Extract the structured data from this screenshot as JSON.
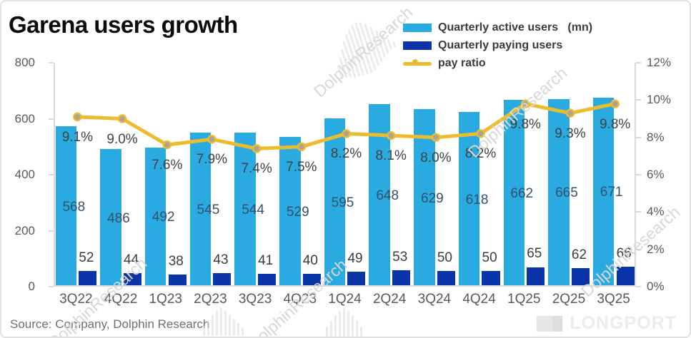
{
  "title": "Garena users growth",
  "legend": [
    {
      "label": "Quarterly active users   (mn)",
      "type": "bar"
    },
    {
      "label": "Quarterly paying users",
      "type": "bar"
    },
    {
      "label": "pay ratio",
      "type": "line"
    }
  ],
  "chart_data": {
    "type": "bar+line combo",
    "categories": [
      "3Q22",
      "4Q22",
      "1Q23",
      "2Q23",
      "3Q23",
      "4Q23",
      "1Q24",
      "2Q24",
      "3Q24",
      "4Q24",
      "1Q25",
      "2Q25",
      "3Q25"
    ],
    "series": [
      {
        "name": "Quarterly active users (mn)",
        "type": "bar",
        "axis": "left",
        "color": "#29abe2",
        "values": [
          568,
          486,
          492,
          545,
          544,
          529,
          595,
          648,
          629,
          618,
          662,
          665,
          671
        ]
      },
      {
        "name": "Quarterly paying users",
        "type": "bar",
        "axis": "left",
        "color": "#0b34a8",
        "values": [
          52,
          44,
          38,
          43,
          41,
          40,
          49,
          53,
          50,
          50,
          65,
          62,
          66
        ]
      },
      {
        "name": "pay ratio",
        "type": "line",
        "axis": "right",
        "color": "#edbb2e",
        "marker_fill": "#a8a39b",
        "values": [
          9.1,
          9.0,
          7.6,
          7.9,
          7.4,
          7.5,
          8.2,
          8.1,
          8.0,
          8.2,
          9.8,
          9.3,
          9.8
        ],
        "labels": [
          "9.1%",
          "9.0%",
          "7.6%",
          "7.9%",
          "7.4%",
          "7.5%",
          "8.2%",
          "8.1%",
          "8.0%",
          "8.2%",
          "9.8%",
          "9.3%",
          "9.8%"
        ]
      }
    ],
    "left_axis": {
      "min": 0,
      "max": 800,
      "ticks": [
        "800",
        "600",
        "400",
        "200",
        "0"
      ]
    },
    "right_axis": {
      "min": 0,
      "max": 12,
      "ticks": [
        "12%",
        "10%",
        "8%",
        "6%",
        "4%",
        "2%",
        "0%"
      ]
    },
    "grid": false,
    "legend_position": "top-right"
  },
  "source": "Source: Company, Dolphin Research",
  "watermarks": {
    "diagonal_text": "DolphinResearch",
    "brand": "LONGPORT"
  },
  "colors": {
    "active_bar": "#29abe2",
    "paying_bar": "#0b34a8",
    "pay_ratio_line": "#edbb2e",
    "axis_text": "#595959",
    "axis_line": "#d9d9d9"
  }
}
